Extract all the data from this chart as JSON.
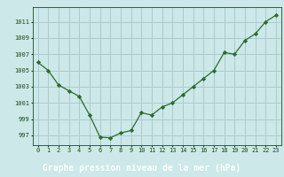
{
  "hours": [
    0,
    1,
    2,
    3,
    4,
    5,
    6,
    7,
    8,
    9,
    10,
    11,
    12,
    13,
    14,
    15,
    16,
    17,
    18,
    19,
    20,
    21,
    22,
    23
  ],
  "pressure": [
    1006.0,
    1005.0,
    1003.2,
    1002.5,
    1001.8,
    999.5,
    996.8,
    996.7,
    997.3,
    997.6,
    999.8,
    999.5,
    1000.5,
    1001.0,
    1002.0,
    1003.0,
    1004.0,
    1005.0,
    1007.2,
    1007.0,
    1008.7,
    1009.5,
    1011.0,
    1011.8
  ],
  "line_color": "#2d6a2d",
  "marker": "D",
  "markersize": 2.2,
  "bg_color": "#cce8e8",
  "grid_color": "#aacccc",
  "xlabel": "Graphe pression niveau de la mer (hPa)",
  "xlabel_color": "#ffffff",
  "xlabel_bg": "#2d6a2d",
  "tick_color": "#1a4a1a",
  "yticks": [
    997,
    999,
    1001,
    1003,
    1005,
    1007,
    1009,
    1011
  ],
  "ylim": [
    995.8,
    1012.8
  ],
  "xlim": [
    -0.5,
    23.5
  ],
  "tick_fontsize": 5.0,
  "xlabel_fontsize": 7.0
}
